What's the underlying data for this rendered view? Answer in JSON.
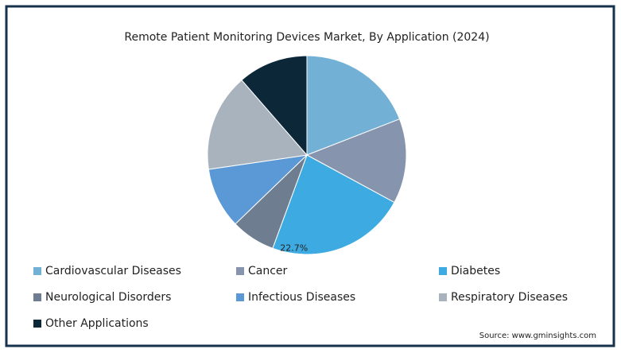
{
  "chart_data": {
    "type": "pie",
    "title": "Remote Patient Monitoring Devices Market, By Application (2024)",
    "categories": [
      "Cardiovascular Diseases",
      "Cancer",
      "Diabetes",
      "Neurological Disorders",
      "Infectious Diseases",
      "Respiratory Diseases",
      "Other Applications"
    ],
    "values": [
      19.1,
      13.8,
      22.7,
      7.2,
      9.9,
      15.9,
      11.4
    ],
    "value_labels": [
      null,
      null,
      "22.7%",
      null,
      null,
      null,
      null
    ],
    "colors": [
      "#72b0d6",
      "#8794ae",
      "#3eaae2",
      "#6e7e90",
      "#5a98d6",
      "#a9b3bd",
      "#0c2737"
    ],
    "source": "Source: www.gminsights.com"
  }
}
